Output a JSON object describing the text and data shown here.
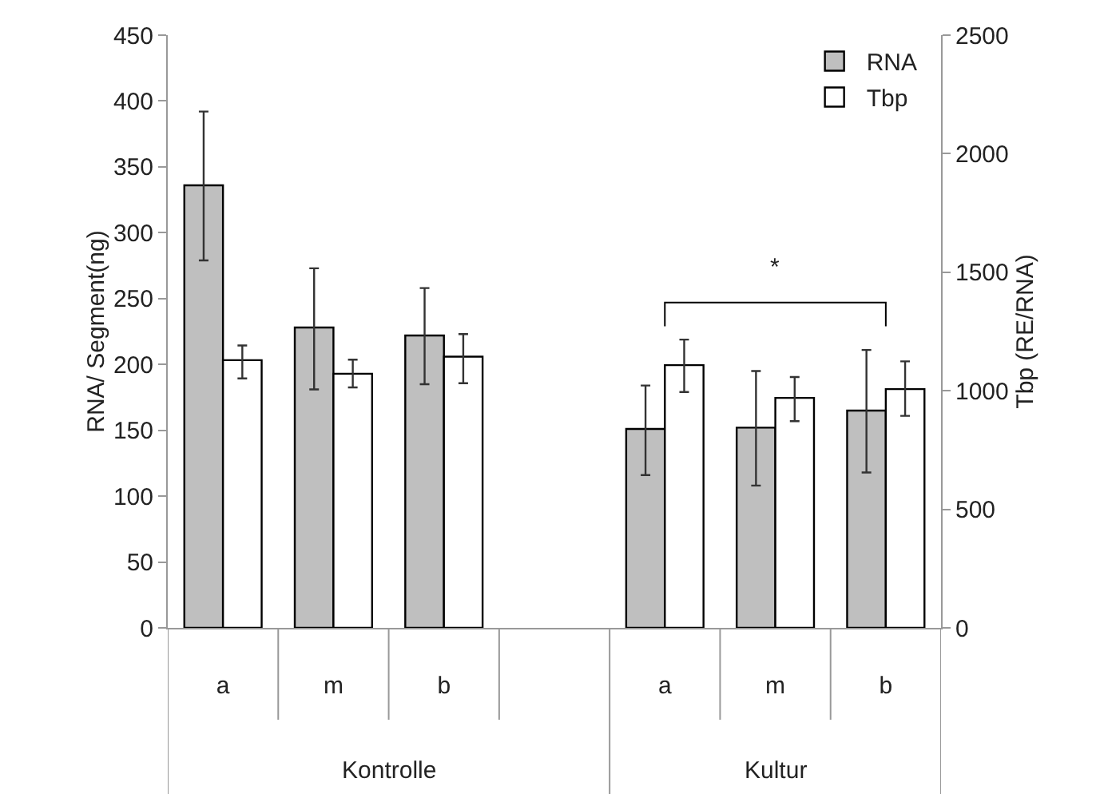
{
  "chart_data": {
    "type": "bar",
    "ylabel": "RNA/ Segment(ng)",
    "y2label": "Tbp (RE/RNA)",
    "categories": [
      "a",
      "m",
      "b",
      null,
      "a",
      "m",
      "b"
    ],
    "series": [
      {
        "name": "RNA",
        "color": "#bfbfbf",
        "values": [
          336,
          228,
          222,
          null,
          151,
          152,
          165
        ],
        "errors": [
          [
            279,
            392
          ],
          [
            181,
            273
          ],
          [
            185,
            258
          ],
          null,
          [
            116,
            184
          ],
          [
            108,
            195
          ],
          [
            118,
            211
          ]
        ]
      },
      {
        "name": "Tbp",
        "color": "#ffffff",
        "axis": "y2",
        "values": [
          1129,
          1072,
          1144,
          null,
          1108,
          970,
          1007
        ],
        "errors": [
          [
            1052,
            1191
          ],
          [
            1014,
            1131
          ],
          [
            1032,
            1239
          ],
          null,
          [
            995,
            1216
          ],
          [
            872,
            1058
          ],
          [
            894,
            1124
          ]
        ]
      }
    ],
    "ylim": [
      0,
      450
    ],
    "yticks": [
      0,
      50,
      100,
      150,
      200,
      250,
      300,
      350,
      400,
      450
    ],
    "y2lim": [
      0,
      2500
    ],
    "y2ticks": [
      0,
      500,
      1000,
      1500,
      2000,
      2500
    ],
    "annotations": [
      "Kontrolle",
      "Kultur",
      "*"
    ],
    "grid": false,
    "legend": "top right"
  }
}
